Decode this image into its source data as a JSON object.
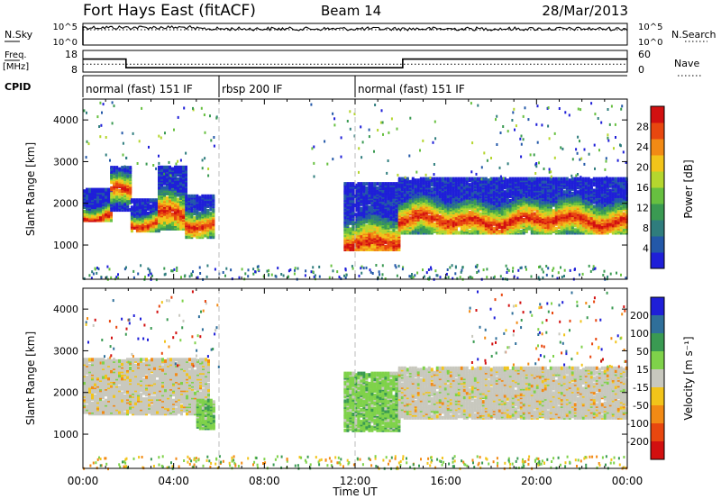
{
  "header": {
    "station": "Fort Hays East (fitACF)",
    "beam": "Beam 14",
    "date": "28/Mar/2013"
  },
  "status_panels": {
    "nsky": {
      "left_label": "N.Sky",
      "right_label": "N.Search",
      "left_ticks": [
        "10^5",
        "10^0"
      ],
      "right_ticks": [
        "10^5",
        "10^0"
      ]
    },
    "freq": {
      "left_label_1": "Freq.",
      "left_label_2": "[MHz]",
      "right_label": "Nave",
      "left_ticks": [
        "18",
        "8"
      ],
      "right_ticks": [
        "60",
        "0"
      ],
      "freq_steps": [
        {
          "from": 0.0,
          "to": 1.9,
          "value": 14
        },
        {
          "from": 1.9,
          "to": 14.1,
          "value": 10
        },
        {
          "from": 14.1,
          "to": 24.0,
          "value": 14
        }
      ],
      "nave_level": 22
    },
    "cpid": {
      "label": "CPID",
      "segments": [
        {
          "start": 0,
          "end": 6,
          "text": "normal (fast) 151 IF"
        },
        {
          "start": 6,
          "end": 12,
          "text": "rbsp 200 IF"
        },
        {
          "start": 12,
          "end": 24,
          "text": "normal (fast) 151 IF"
        }
      ]
    }
  },
  "chart_data": [
    {
      "type": "heatmap",
      "name": "power",
      "ylabel": "Slant Range [km]",
      "xlabel": "Time UT",
      "xlim_hours": [
        0,
        24
      ],
      "ylim_km": [
        180,
        4500
      ],
      "yticks": [
        1000,
        2000,
        3000,
        4000
      ],
      "xtick_labels": [
        "00:00",
        "04:00",
        "08:00",
        "12:00",
        "16:00",
        "20:00",
        "00:00"
      ],
      "colorbar": {
        "label": "Power [dB]",
        "range": [
          0,
          32
        ],
        "tick_values": [
          4,
          8,
          12,
          16,
          20,
          24,
          28
        ],
        "tick_labels": [
          "4",
          "8",
          "12",
          "16",
          "20",
          "24",
          "28"
        ],
        "colors": [
          "#1f1fd8",
          "#2358a8",
          "#2f7d7d",
          "#3a9a52",
          "#67c040",
          "#b5d62e",
          "#f2c41a",
          "#f28a15",
          "#e8470f",
          "#d21010"
        ]
      },
      "regions": [
        {
          "t0": 0.0,
          "t1": 1.2,
          "lo": 1600,
          "hi": 2350,
          "peak": 1750
        },
        {
          "t0": 1.2,
          "t1": 2.1,
          "lo": 1850,
          "hi": 2900,
          "peak": 2350
        },
        {
          "t0": 2.1,
          "t1": 3.3,
          "lo": 1350,
          "hi": 2100,
          "peak": 1500
        },
        {
          "t0": 3.3,
          "t1": 4.5,
          "lo": 1400,
          "hi": 2900,
          "peak": 1700
        },
        {
          "t0": 4.5,
          "t1": 5.8,
          "lo": 1200,
          "hi": 2200,
          "peak": 1500
        },
        {
          "t0": 11.5,
          "t1": 13.9,
          "lo": 900,
          "hi": 2500,
          "peak": 1100
        },
        {
          "t0": 13.9,
          "t1": 24.0,
          "lo": 1300,
          "hi": 2600,
          "peak": 1600
        }
      ]
    },
    {
      "type": "heatmap",
      "name": "velocity",
      "ylabel": "Slant Range [km]",
      "xlabel": "Time UT",
      "xlim_hours": [
        0,
        24
      ],
      "ylim_km": [
        180,
        4500
      ],
      "yticks": [
        1000,
        2000,
        3000,
        4000
      ],
      "xtick_labels": [
        "00:00",
        "04:00",
        "08:00",
        "12:00",
        "16:00",
        "20:00",
        "00:00"
      ],
      "colorbar": {
        "label": "Velocity [m s⁻¹]",
        "tick_values": [
          200,
          100,
          50,
          15,
          -15,
          -50,
          -100,
          -200
        ],
        "tick_labels": [
          "200",
          "100",
          "50",
          "15",
          "-15",
          "-50",
          "-100",
          "-200"
        ],
        "colors": [
          "#1f1fd8",
          "#2f6f9a",
          "#3a9a52",
          "#7fd24a",
          "#c8c8be",
          "#f2c41a",
          "#f28a15",
          "#e8470f",
          "#d21010"
        ]
      },
      "regions": [
        {
          "t0": 0.0,
          "t1": 5.5,
          "lo": 1500,
          "hi": 2800,
          "class": "ground"
        },
        {
          "t0": 5.0,
          "t1": 5.8,
          "lo": 1150,
          "hi": 1850,
          "class": "green"
        },
        {
          "t0": 11.5,
          "t1": 13.9,
          "lo": 1100,
          "hi": 2500,
          "class": "green"
        },
        {
          "t0": 13.9,
          "t1": 24.0,
          "lo": 1400,
          "hi": 2600,
          "class": "ground"
        }
      ]
    }
  ]
}
